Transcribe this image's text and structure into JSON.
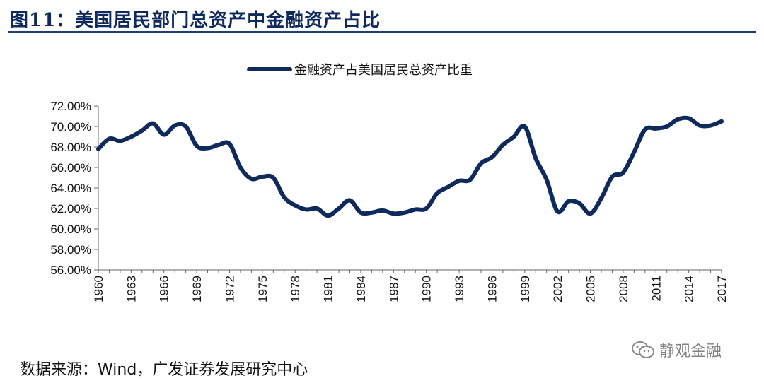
{
  "figure": {
    "title": "图11：美国居民部门总资产中金融资产占比",
    "source": "数据来源：Wind，广发证券发展研究中心",
    "watermark": "静观金融"
  },
  "chart_data": {
    "type": "line",
    "legend_position": "top-center",
    "grid": false,
    "ylim": [
      0.56,
      0.72
    ],
    "yticks": [
      0.56,
      0.58,
      0.6,
      0.62,
      0.64,
      0.66,
      0.68,
      0.7,
      0.72
    ],
    "yticks_labels": [
      "56.00%",
      "58.00%",
      "60.00%",
      "62.00%",
      "64.00%",
      "66.00%",
      "68.00%",
      "70.00%",
      "72.00%"
    ],
    "xlim": [
      1960,
      2017
    ],
    "xticks": [
      "1960",
      "1963",
      "1966",
      "1969",
      "1972",
      "1975",
      "1978",
      "1981",
      "1984",
      "1987",
      "1990",
      "1993",
      "1996",
      "1999",
      "2002",
      "2005",
      "2008",
      "2011",
      "2014",
      "2017"
    ],
    "color": "#0e2a5c",
    "series": [
      {
        "name": "金融资产占美国居民总资产比重",
        "x": [
          1960,
          1961,
          1962,
          1963,
          1964,
          1965,
          1966,
          1967,
          1968,
          1969,
          1970,
          1971,
          1972,
          1973,
          1974,
          1975,
          1976,
          1977,
          1978,
          1979,
          1980,
          1981,
          1982,
          1983,
          1984,
          1985,
          1986,
          1987,
          1988,
          1989,
          1990,
          1991,
          1992,
          1993,
          1994,
          1995,
          1996,
          1997,
          1998,
          1999,
          2000,
          2001,
          2002,
          2003,
          2004,
          2005,
          2006,
          2007,
          2008,
          2009,
          2010,
          2011,
          2012,
          2013,
          2014,
          2015,
          2016,
          2017
        ],
        "values": [
          0.678,
          0.688,
          0.686,
          0.69,
          0.696,
          0.703,
          0.692,
          0.701,
          0.7,
          0.681,
          0.679,
          0.682,
          0.683,
          0.66,
          0.649,
          0.651,
          0.65,
          0.631,
          0.623,
          0.619,
          0.62,
          0.613,
          0.62,
          0.628,
          0.616,
          0.616,
          0.618,
          0.615,
          0.616,
          0.619,
          0.62,
          0.635,
          0.641,
          0.647,
          0.648,
          0.664,
          0.67,
          0.682,
          0.69,
          0.7,
          0.669,
          0.648,
          0.617,
          0.627,
          0.625,
          0.615,
          0.63,
          0.651,
          0.655,
          0.675,
          0.697,
          0.698,
          0.7,
          0.707,
          0.708,
          0.701,
          0.701,
          0.705
        ]
      }
    ]
  }
}
